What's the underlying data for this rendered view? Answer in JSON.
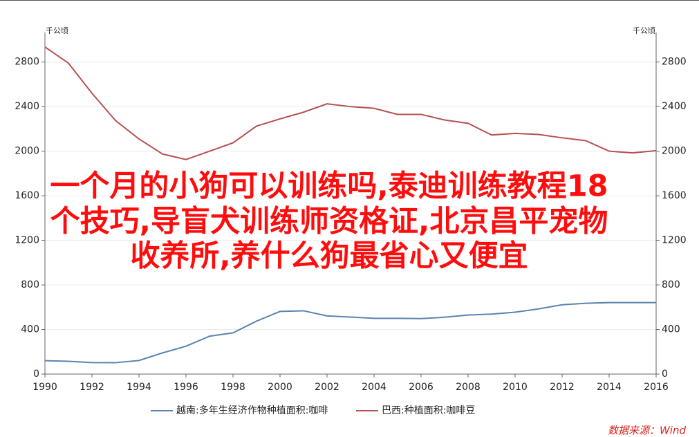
{
  "chart_data": {
    "type": "line",
    "y_unit_label": "千公顷",
    "y2_unit_label": "千公顷",
    "x": [
      1990,
      1991,
      1992,
      1993,
      1994,
      1995,
      1996,
      1997,
      1998,
      1999,
      2000,
      2001,
      2002,
      2003,
      2004,
      2005,
      2006,
      2007,
      2008,
      2009,
      2010,
      2011,
      2012,
      2013,
      2014,
      2015,
      2016
    ],
    "series": [
      {
        "name": "越南:多年生经济作物种植面积:咖啡",
        "color": "#5a83b0",
        "axis": "y",
        "values": [
          120,
          115,
          103,
          102,
          122,
          190,
          250,
          340,
          370,
          475,
          562,
          568,
          522,
          512,
          500,
          500,
          498,
          510,
          530,
          538,
          555,
          585,
          622,
          635,
          641,
          641,
          641
        ]
      },
      {
        "name": "巴西:种植面积:咖啡豆",
        "color": "#b5504f",
        "axis": "y2",
        "values": [
          2935,
          2790,
          2520,
          2275,
          2110,
          1975,
          1925,
          2000,
          2075,
          2225,
          2290,
          2350,
          2425,
          2400,
          2385,
          2330,
          2330,
          2280,
          2250,
          2145,
          2160,
          2150,
          2120,
          2095,
          2000,
          1985,
          2005
        ]
      }
    ],
    "xlim": [
      1990,
      2016
    ],
    "xticks": [
      1990,
      1992,
      1994,
      1996,
      1998,
      2000,
      2002,
      2004,
      2006,
      2008,
      2010,
      2012,
      2014,
      2016
    ],
    "ylim": [
      0,
      3065
    ],
    "yticks": [
      0,
      400,
      800,
      1200,
      1600,
      2000,
      2400,
      2800
    ],
    "y2lim": [
      0,
      3065
    ],
    "y2ticks": [
      0,
      400,
      800,
      1200,
      1600,
      2000,
      2400,
      2800
    ],
    "grid": true,
    "legend": "bottom",
    "overlay_text": [
      "一个月的小狗可以训练吗,泰迪训练教程18",
      "个技巧,导盲犬训练师资格证,北京昌平宠物",
      "收养所,养什么狗最省心又便宜"
    ],
    "source": "数据来源：Wind"
  }
}
